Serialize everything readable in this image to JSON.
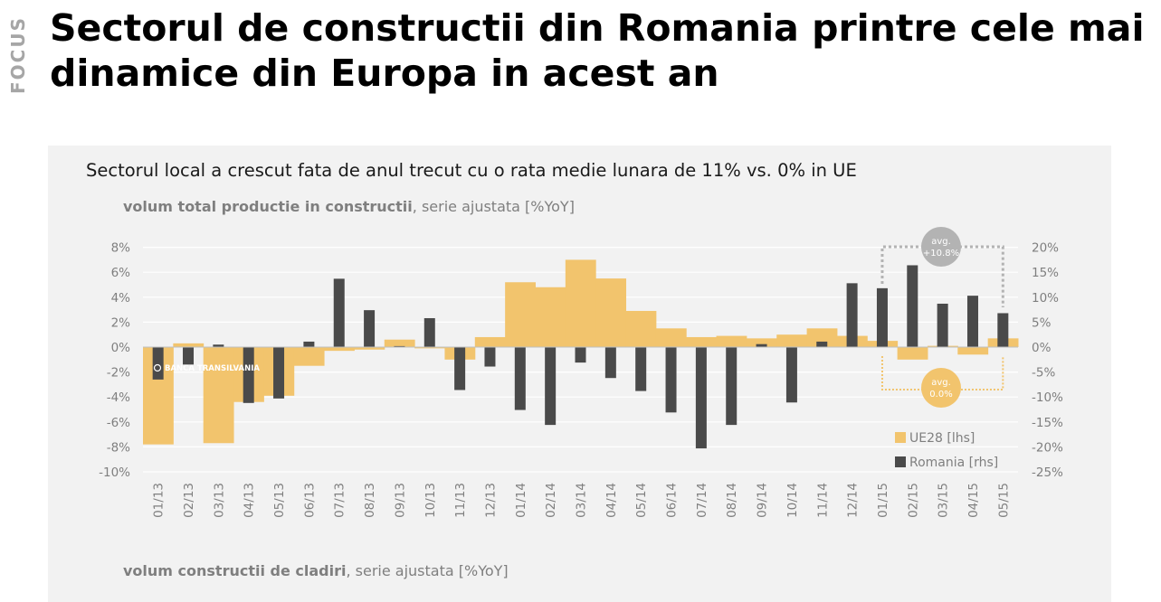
{
  "header": {
    "side_label": "FOCUS",
    "title": "Sectorul de constructii din Romania printre cele mai dinamice din Europa in acest an"
  },
  "panel": {
    "chart_title": "Sectorul local a crescut fata de anul trecut cu o rata medie lunara de 11% vs. 0% in UE",
    "subtitle_top_bold": "volum total productie in constructii",
    "subtitle_top_rest": ", serie ajustata [%YoY]",
    "subtitle_bottom_bold": "volum constructii de cladiri",
    "subtitle_bottom_rest": ", serie ajustata [%YoY]",
    "watermark": "BANCA TRANSILVANIA"
  },
  "chart_data": {
    "type": "bar",
    "categories": [
      "01/13",
      "02/13",
      "03/13",
      "04/13",
      "05/13",
      "06/13",
      "07/13",
      "08/13",
      "09/13",
      "10/13",
      "11/13",
      "12/13",
      "01/14",
      "02/14",
      "03/14",
      "04/14",
      "05/14",
      "06/14",
      "07/14",
      "08/14",
      "09/14",
      "10/14",
      "11/14",
      "12/14",
      "01/15",
      "02/15",
      "03/15",
      "04/15",
      "05/15"
    ],
    "series": [
      {
        "name": "UE28 [lhs]",
        "axis": "left",
        "color": "#f2c46d",
        "values": [
          -7.8,
          0.3,
          -7.7,
          -4.4,
          -3.9,
          -1.5,
          -0.3,
          -0.2,
          0.6,
          -0.1,
          -1.0,
          0.8,
          5.2,
          4.8,
          7.0,
          5.5,
          2.9,
          1.5,
          0.8,
          0.9,
          0.7,
          1.0,
          1.5,
          0.9,
          0.5,
          -1.0,
          0.1,
          -0.6,
          0.7
        ]
      },
      {
        "name": "Romania [rhs]",
        "axis": "right",
        "color": "#4a4a4a",
        "values": [
          -6.5,
          -3.5,
          0.5,
          -11.2,
          -10.3,
          1.1,
          13.7,
          7.4,
          0.2,
          5.8,
          -8.6,
          -3.9,
          -12.6,
          -15.6,
          -3.1,
          -6.2,
          -8.8,
          -13.1,
          -20.3,
          -15.6,
          0.6,
          -11.1,
          1.1,
          12.8,
          11.8,
          16.4,
          8.7,
          10.3,
          6.8
        ]
      }
    ],
    "ylim_left": [
      -10,
      8
    ],
    "ylim_right": [
      -25,
      20
    ],
    "yticks_left": [
      "8%",
      "6%",
      "4%",
      "2%",
      "0%",
      "-2%",
      "-4%",
      "-6%",
      "-8%",
      "-10%"
    ],
    "yticks_right": [
      "20%",
      "15%",
      "10%",
      "5%",
      "0%",
      "-5%",
      "-10%",
      "-15%",
      "-20%",
      "-25%"
    ],
    "legend": [
      "UE28 [lhs]",
      "Romania [rhs]"
    ],
    "legend_position": "bottom-right",
    "grid": true,
    "annotations": [
      {
        "text_line1": "avg.",
        "text_line2": "+10.8%",
        "color": "#b3b3b3"
      },
      {
        "text_line1": "avg.",
        "text_line2": "0.0%",
        "color": "#f2c46d"
      }
    ]
  }
}
